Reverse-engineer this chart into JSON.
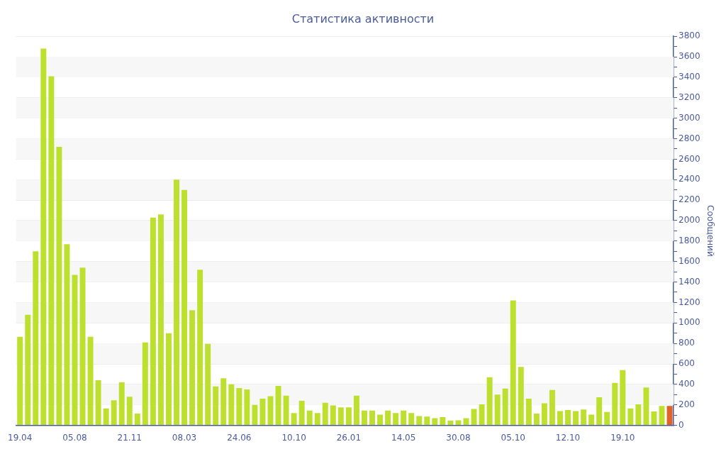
{
  "chart_data": {
    "type": "bar",
    "title": "Статистика активности",
    "ylabel": "Сообщений",
    "categories": [
      "19.04",
      null,
      null,
      null,
      null,
      null,
      null,
      "05.08",
      null,
      null,
      null,
      null,
      null,
      null,
      "21.11",
      null,
      null,
      null,
      null,
      null,
      null,
      "08.03",
      null,
      null,
      null,
      null,
      null,
      null,
      "24.06",
      null,
      null,
      null,
      null,
      null,
      null,
      "10.10",
      null,
      null,
      null,
      null,
      null,
      null,
      "26.01",
      null,
      null,
      null,
      null,
      null,
      null,
      "14.05",
      null,
      null,
      null,
      null,
      null,
      null,
      "30.08",
      null,
      null,
      null,
      null,
      null,
      null,
      "05.10",
      null,
      null,
      null,
      null,
      null,
      null,
      "12.10",
      null,
      null,
      null,
      null,
      null,
      null,
      "19.10",
      null,
      null,
      null,
      null,
      null,
      null
    ],
    "values": [
      865,
      1080,
      1700,
      3680,
      3410,
      2720,
      1770,
      1470,
      1540,
      865,
      440,
      165,
      245,
      420,
      280,
      115,
      810,
      2030,
      2060,
      900,
      2400,
      2300,
      1125,
      1520,
      795,
      380,
      460,
      400,
      365,
      350,
      200,
      260,
      285,
      385,
      290,
      120,
      240,
      145,
      120,
      220,
      195,
      175,
      175,
      290,
      145,
      145,
      105,
      145,
      120,
      145,
      120,
      90,
      85,
      70,
      80,
      45,
      50,
      70,
      160,
      205,
      470,
      300,
      360,
      1220,
      570,
      260,
      115,
      215,
      345,
      140,
      150,
      140,
      155,
      105,
      275,
      130,
      415,
      540,
      165,
      205,
      370,
      135,
      190,
      190
    ],
    "colors": [
      "#bde02f",
      "#bde02f",
      "#bde02f",
      "#bde02f",
      "#bde02f",
      "#bde02f",
      "#bde02f",
      "#bde02f",
      "#bde02f",
      "#bde02f",
      "#bde02f",
      "#bde02f",
      "#bde02f",
      "#bde02f",
      "#bde02f",
      "#bde02f",
      "#bde02f",
      "#bde02f",
      "#bde02f",
      "#bde02f",
      "#bde02f",
      "#bde02f",
      "#bde02f",
      "#bde02f",
      "#bde02f",
      "#bde02f",
      "#bde02f",
      "#bde02f",
      "#bde02f",
      "#bde02f",
      "#bde02f",
      "#bde02f",
      "#bde02f",
      "#bde02f",
      "#bde02f",
      "#bde02f",
      "#bde02f",
      "#bde02f",
      "#bde02f",
      "#bde02f",
      "#bde02f",
      "#bde02f",
      "#bde02f",
      "#bde02f",
      "#bde02f",
      "#bde02f",
      "#bde02f",
      "#bde02f",
      "#bde02f",
      "#bde02f",
      "#bde02f",
      "#bde02f",
      "#bde02f",
      "#bde02f",
      "#bde02f",
      "#bde02f",
      "#bde02f",
      "#bde02f",
      "#bde02f",
      "#bde02f",
      "#bde02f",
      "#bde02f",
      "#bde02f",
      "#bde02f",
      "#bde02f",
      "#bde02f",
      "#bde02f",
      "#bde02f",
      "#bde02f",
      "#bde02f",
      "#bde02f",
      "#bde02f",
      "#bde02f",
      "#bde02f",
      "#bde02f",
      "#bde02f",
      "#bde02f",
      "#bde02f",
      "#bde02f",
      "#bde02f",
      "#bde02f",
      "#bde02f",
      "#bde02f",
      "#e0632a"
    ],
    "ylim": [
      0,
      3800
    ],
    "yticks": [
      0,
      {
        "value": 100,
        "label": null
      },
      200,
      {
        "value": 300,
        "label": null
      },
      400,
      {
        "value": 500,
        "label": null
      },
      600,
      {
        "value": 700,
        "label": null
      },
      800,
      {
        "value": 900,
        "label": null
      },
      1000,
      {
        "value": 1100,
        "label": null
      },
      1200,
      {
        "value": 1300,
        "label": null
      },
      1400,
      {
        "value": 1500,
        "label": null
      },
      1600,
      {
        "value": 1700,
        "label": null
      },
      1800,
      {
        "value": 1900,
        "label": null
      },
      2000,
      {
        "value": 2100,
        "label": null
      },
      2200,
      {
        "value": 2300,
        "label": null
      },
      2400,
      {
        "value": 2500,
        "label": null
      },
      2600,
      {
        "value": 2700,
        "label": null
      },
      2800,
      {
        "value": 2900,
        "label": null
      },
      3000,
      {
        "value": 3100,
        "label": null
      },
      3200,
      {
        "value": 3300,
        "label": null
      },
      3400,
      {
        "value": 3500,
        "label": null
      },
      3600,
      {
        "value": 3700,
        "label": null
      },
      3800
    ],
    "grid": true,
    "legend": false
  }
}
